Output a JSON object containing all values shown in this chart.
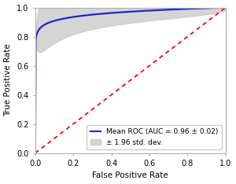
{
  "title": "",
  "xlabel": "False Positive Rate",
  "ylabel": "True Positive Rate",
  "xlim": [
    0.0,
    1.0
  ],
  "ylim": [
    0.0,
    1.0
  ],
  "xticks": [
    0.0,
    0.2,
    0.4,
    0.6,
    0.8,
    1.0
  ],
  "yticks": [
    0.0,
    0.2,
    0.4,
    0.6,
    0.8,
    1.0
  ],
  "mean_roc_color": "#2222cc",
  "std_fill_color": "#c8c8c8",
  "diagonal_color": "#ff0000",
  "legend_mean_label": "Mean ROC (AUC = 0.96 ± 0.02)",
  "legend_std_label": "± 1.96 std. dev.",
  "mean_roc_linewidth": 1.6,
  "diagonal_linewidth": 1.3,
  "font_size": 7.5,
  "legend_font_size": 6.5
}
